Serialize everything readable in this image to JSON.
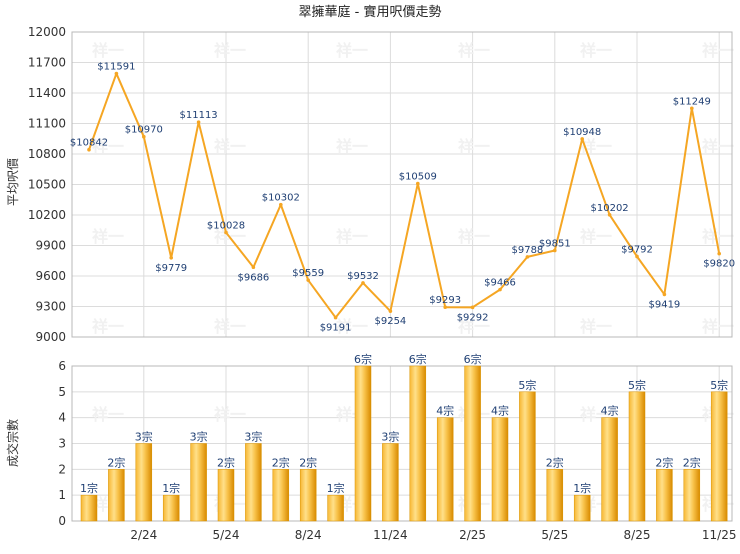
{
  "chart_data": [
    {
      "type": "line",
      "title": "翠擁華庭 - 實用呎價走勢",
      "ylabel": "平均呎價",
      "ylim": [
        9000,
        12000
      ],
      "yticks": [
        "9000",
        "9300",
        "9600",
        "9900",
        "10200",
        "10500",
        "10800",
        "11100",
        "11400",
        "11700",
        "12000"
      ],
      "grid": true,
      "color": "#f5a623",
      "series": [
        {
          "values": [
            10842,
            11591,
            10970,
            9779,
            11113,
            10028,
            9686,
            10302,
            9559,
            9191,
            9532,
            9254,
            10509,
            9293,
            9292,
            9466,
            9788,
            9851,
            10948,
            10202,
            9792,
            9419,
            11249,
            9820
          ],
          "labels": [
            "$10842",
            "$11591",
            "$10970",
            "$9779",
            "$11113",
            "$10028",
            "$9686",
            "$10302",
            "$9559",
            "$9191",
            "$9532",
            "$9254",
            "$10509",
            "$9293",
            "$9292",
            "$9466",
            "$9788",
            "$9851",
            "$10948",
            "$10202",
            "$9792",
            "$9419",
            "$11249",
            "$9820"
          ]
        }
      ]
    },
    {
      "type": "bar",
      "ylabel": "成交宗數",
      "ylim": [
        0,
        6
      ],
      "yticks": [
        "0",
        "1",
        "2",
        "3",
        "4",
        "5",
        "6"
      ],
      "categories": [
        "2/24",
        "5/24",
        "8/24",
        "11/24",
        "2/25",
        "5/25",
        "8/25",
        "11/25"
      ],
      "category_index": [
        2,
        5,
        8,
        11,
        14,
        17,
        20,
        23
      ],
      "grid": true,
      "color": "#f0a30a",
      "values": [
        1,
        2,
        3,
        1,
        3,
        2,
        3,
        2,
        2,
        1,
        6,
        3,
        6,
        4,
        6,
        4,
        5,
        2,
        1,
        4,
        5,
        2,
        2,
        5
      ],
      "labels": [
        "1宗",
        "2宗",
        "3宗",
        "1宗",
        "3宗",
        "2宗",
        "3宗",
        "2宗",
        "2宗",
        "1宗",
        "6宗",
        "3宗",
        "6宗",
        "4宗",
        "6宗",
        "4宗",
        "5宗",
        "2宗",
        "1宗",
        "4宗",
        "5宗",
        "2宗",
        "2宗",
        "5宗"
      ]
    }
  ],
  "watermark": "祥一"
}
